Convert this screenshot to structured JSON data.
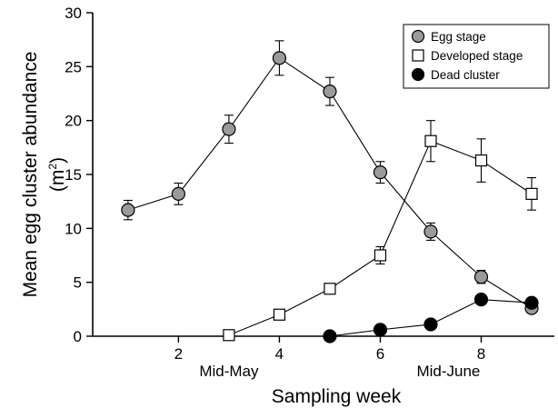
{
  "chart_data": {
    "type": "line",
    "xlabel": "Sampling week",
    "ylabel_line1": "Mean egg cluster abundance",
    "ylabel_line2_base": "(m",
    "ylabel_line2_sup": "2",
    "ylabel_line2_close": ")",
    "xlim": [
      0.3,
      9.45
    ],
    "ylim": [
      0,
      30
    ],
    "x_ticks": [
      2,
      4,
      6,
      8
    ],
    "y_ticks": [
      0,
      5,
      10,
      15,
      20,
      25,
      30
    ],
    "annotations": [
      {
        "text": "Mid-May",
        "x": 3
      },
      {
        "text": "Mid-June",
        "x": 7.35
      }
    ],
    "legend_position": "top-right",
    "series": [
      {
        "name": "Egg stage",
        "marker": "circle",
        "fill": "#9a9a9a",
        "points": [
          {
            "x": 1,
            "y": 11.7,
            "err": 0.9
          },
          {
            "x": 2,
            "y": 13.2,
            "err": 1.0
          },
          {
            "x": 3,
            "y": 19.2,
            "err": 1.3
          },
          {
            "x": 4,
            "y": 25.8,
            "err": 1.6
          },
          {
            "x": 5,
            "y": 22.7,
            "err": 1.3
          },
          {
            "x": 6,
            "y": 15.2,
            "err": 1.0
          },
          {
            "x": 7,
            "y": 9.7,
            "err": 0.8
          },
          {
            "x": 8,
            "y": 5.5,
            "err": 0.6
          },
          {
            "x": 9,
            "y": 2.6,
            "err": 0.3
          }
        ]
      },
      {
        "name": "Developed stage",
        "marker": "square",
        "fill": "#ffffff",
        "points": [
          {
            "x": 3,
            "y": 0.1,
            "err": 0
          },
          {
            "x": 4,
            "y": 2.0,
            "err": 0
          },
          {
            "x": 5,
            "y": 4.4,
            "err": 0
          },
          {
            "x": 6,
            "y": 7.5,
            "err": 0.8
          },
          {
            "x": 7,
            "y": 18.1,
            "err": 1.9
          },
          {
            "x": 8,
            "y": 16.3,
            "err": 2.0
          },
          {
            "x": 9,
            "y": 13.2,
            "err": 1.5
          }
        ]
      },
      {
        "name": "Dead cluster",
        "marker": "circle",
        "fill": "#000000",
        "points": [
          {
            "x": 5,
            "y": 0.0,
            "err": 0
          },
          {
            "x": 6,
            "y": 0.6,
            "err": 0
          },
          {
            "x": 7,
            "y": 1.1,
            "err": 0
          },
          {
            "x": 8,
            "y": 3.4,
            "err": 0
          },
          {
            "x": 9,
            "y": 3.1,
            "err": 0
          }
        ]
      }
    ]
  }
}
